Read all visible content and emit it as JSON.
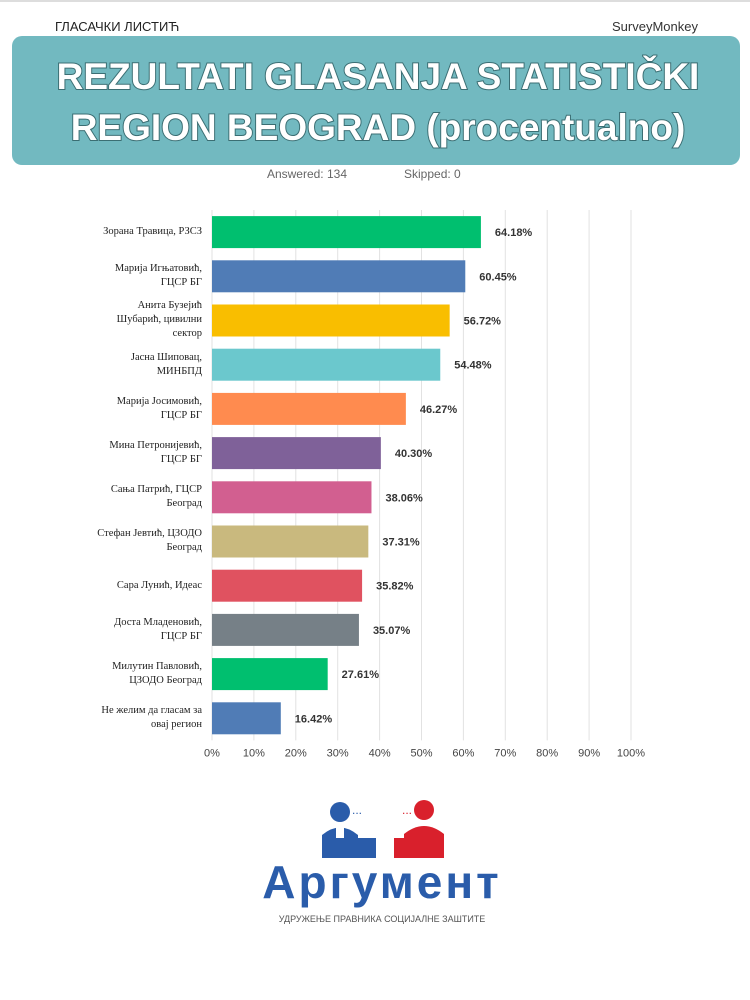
{
  "header": {
    "left": "ГЛАСАЧКИ ЛИСТИЋ",
    "right": "SurveyMonkey"
  },
  "banner": {
    "lines": [
      "REZULTATI GLASANJA STATISTIČKI",
      "REGION BEOGRAD (procentualno)"
    ]
  },
  "stats": {
    "answered": "Answered: 134",
    "skipped": "Skipped: 0"
  },
  "chart_data": {
    "type": "bar",
    "orientation": "horizontal",
    "categories": [
      "Зорана Травица, РЗСЗ",
      "Марија Игњатовић, ГЦСР БГ",
      "Анита Бузејић Шубарић, цивилни сектор",
      "Јасна Шиповац, МИНБПД",
      "Марија Јосимовић, ГЦСР БГ",
      "Мина Петронијевић, ГЦСР БГ",
      "Сања Патрић, ГЦСР Београд",
      "Стефан Јевтић, ЦЗОДО Београд",
      "Сара Лунић, Идеас",
      "Доста Младеновић, ГЦСР БГ",
      "Милутин Павловић, ЦЗОДО Београд",
      "Не желим да гласам за овај регион"
    ],
    "values": [
      64.18,
      60.45,
      56.72,
      54.48,
      46.27,
      40.3,
      38.06,
      37.31,
      35.82,
      35.07,
      27.61,
      16.42
    ],
    "value_labels": [
      "64.18%",
      "60.45%",
      "56.72%",
      "54.48%",
      "46.27%",
      "40.30%",
      "38.06%",
      "37.31%",
      "35.82%",
      "35.07%",
      "27.61%",
      "16.42%"
    ],
    "colors": [
      "#00bf6f",
      "#507cb6",
      "#f9be00",
      "#6bc8cd",
      "#ff8b4f",
      "#7f6199",
      "#d25f90",
      "#c9b97e",
      "#e05260",
      "#768087",
      "#00bf6f",
      "#507cb6"
    ],
    "xlim": [
      0,
      100
    ],
    "xticks": [
      {
        "value": 0,
        "label": "0%"
      },
      {
        "value": 10,
        "label": "10%"
      },
      {
        "value": 20,
        "label": "20%"
      },
      {
        "value": 30,
        "label": "30%"
      },
      {
        "value": 40,
        "label": "40%"
      },
      {
        "value": 50,
        "label": "50%"
      },
      {
        "value": 60,
        "label": "60%"
      },
      {
        "value": 70,
        "label": "70%"
      },
      {
        "value": 80,
        "label": "80%"
      },
      {
        "value": 90,
        "label": "90%"
      },
      {
        "value": 100,
        "label": "100%"
      }
    ],
    "grid": true
  },
  "logo": {
    "name": "Аргумент",
    "tagline": "УДРУЖЕЊЕ ПРАВНИКА СОЦИЈАЛНЕ ЗАШТИТЕ"
  }
}
